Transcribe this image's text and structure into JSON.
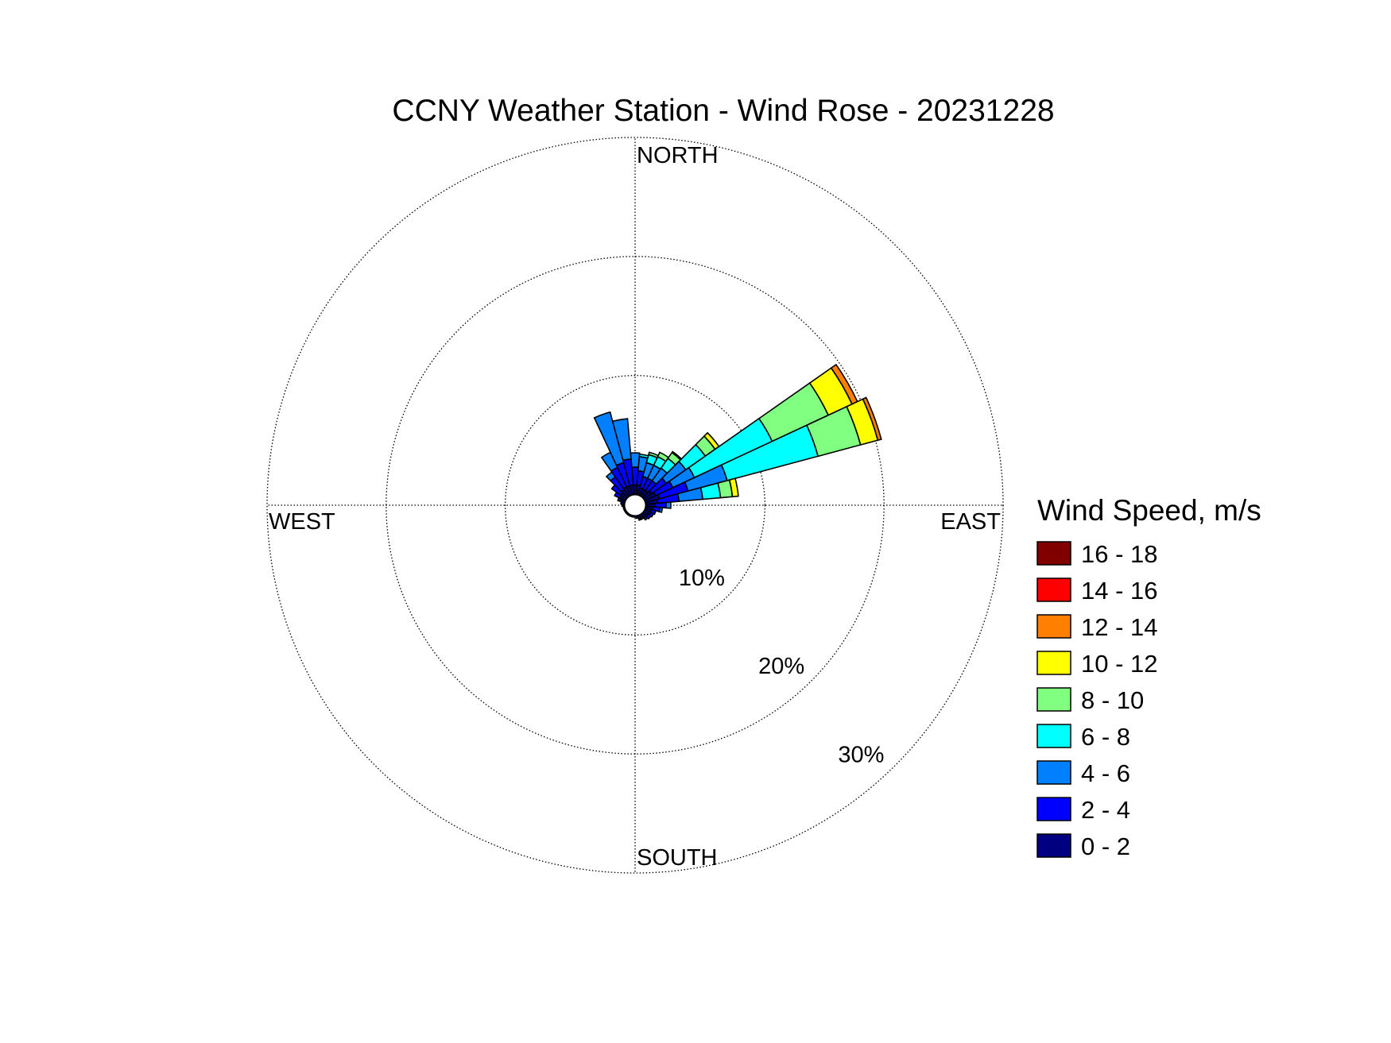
{
  "chart_data": {
    "type": "windrose",
    "title": "CCNY Weather Station - Wind Rose - 20231228",
    "legend_title": "Wind Speed, m/s",
    "x": [
      0,
      10,
      20,
      30,
      40,
      50,
      60,
      70,
      80,
      90,
      100,
      110,
      120,
      130,
      140,
      150,
      160,
      170,
      180,
      190,
      200,
      210,
      220,
      230,
      240,
      250,
      260,
      270,
      280,
      290,
      300,
      310,
      320,
      330,
      340,
      350
    ],
    "rlim": [
      0,
      30
    ],
    "rticks": [
      {
        "value": 10,
        "label": "10%"
      },
      {
        "value": 20,
        "label": "20%"
      },
      {
        "value": 30,
        "label": "30%"
      }
    ],
    "directions": [
      {
        "value": 0,
        "label": "NORTH"
      },
      {
        "value": 90,
        "label": "EAST"
      },
      {
        "value": 180,
        "label": "SOUTH"
      },
      {
        "value": 270,
        "label": "WEST"
      }
    ],
    "grid": true,
    "series": [
      {
        "name": "0 - 2",
        "color": "#000080",
        "values": [
          0.8,
          0.8,
          0.6,
          0.6,
          0.6,
          0.8,
          1.0,
          1.2,
          1.0,
          0.8,
          0.6,
          0.5,
          0.5,
          0.4,
          0.4,
          0.3,
          0.3,
          0.2,
          0.1,
          0.1,
          0.1,
          0.1,
          0.1,
          0.1,
          0.1,
          0.1,
          0.1,
          0.2,
          0.3,
          0.4,
          0.5,
          0.6,
          0.7,
          0.8,
          0.8,
          0.8
        ]
      },
      {
        "name": "2 - 4",
        "color": "#0000ff",
        "values": [
          1.5,
          1.2,
          1.0,
          1.0,
          1.0,
          1.5,
          1.6,
          2.5,
          1.8,
          0.9,
          0.6,
          0.4,
          0.3,
          0.3,
          0.2,
          0.1,
          0.1,
          0,
          0,
          0,
          0,
          0,
          0,
          0,
          0,
          0,
          0,
          0,
          0,
          0.2,
          0.5,
          0.9,
          1.3,
          1.8,
          2.0,
          2.2
        ]
      },
      {
        "name": "4 - 6",
        "color": "#0080ff",
        "values": [
          1.2,
          1.2,
          1.2,
          1.2,
          1.3,
          2.0,
          2.0,
          3.4,
          2.0,
          0.4,
          0.2,
          0,
          0,
          0,
          0,
          0,
          0,
          0,
          0,
          0,
          0,
          0,
          0,
          0,
          0,
          0,
          0,
          0,
          0,
          0,
          0,
          0,
          0.5,
          1.4,
          4.4,
          3.4
        ]
      },
      {
        "name": "6 - 8",
        "color": "#00ffff",
        "values": [
          0,
          0.2,
          0.7,
          0.8,
          1.0,
          2.0,
          7.2,
          7.9,
          1.5,
          0,
          0,
          0,
          0,
          0,
          0,
          0,
          0,
          0,
          0,
          0,
          0,
          0,
          0,
          0,
          0,
          0,
          0,
          0,
          0,
          0,
          0,
          0,
          0,
          0,
          0,
          0
        ]
      },
      {
        "name": "8 - 10",
        "color": "#80ff80",
        "values": [
          0,
          0,
          0.2,
          0.4,
          0.6,
          1.0,
          5.2,
          3.7,
          1.0,
          0,
          0,
          0,
          0,
          0,
          0,
          0,
          0,
          0,
          0,
          0,
          0,
          0,
          0,
          0,
          0,
          0,
          0,
          0,
          0,
          0,
          0,
          0,
          0,
          0,
          0,
          0
        ]
      },
      {
        "name": "10 - 12",
        "color": "#ffff00",
        "values": [
          0,
          0,
          0,
          0,
          0.1,
          0.4,
          2.2,
          1.5,
          0.5,
          0,
          0,
          0,
          0,
          0,
          0,
          0,
          0,
          0,
          0,
          0,
          0,
          0,
          0,
          0,
          0,
          0,
          0,
          0,
          0,
          0,
          0,
          0,
          0,
          0,
          0,
          0
        ]
      },
      {
        "name": "12 - 14",
        "color": "#ff8000",
        "values": [
          0,
          0,
          0,
          0,
          0,
          0,
          0.5,
          0.3,
          0,
          0,
          0,
          0,
          0,
          0,
          0,
          0,
          0,
          0,
          0,
          0,
          0,
          0,
          0,
          0,
          0,
          0,
          0,
          0,
          0,
          0,
          0,
          0,
          0,
          0,
          0,
          0
        ]
      },
      {
        "name": "14 - 16",
        "color": "#ff0000",
        "values": [
          0,
          0,
          0,
          0,
          0,
          0,
          0,
          0,
          0,
          0,
          0,
          0,
          0,
          0,
          0,
          0,
          0,
          0,
          0,
          0,
          0,
          0,
          0,
          0,
          0,
          0,
          0,
          0,
          0,
          0,
          0,
          0,
          0,
          0,
          0,
          0
        ]
      },
      {
        "name": "16 - 18",
        "color": "#800000",
        "values": [
          0,
          0,
          0,
          0,
          0,
          0,
          0,
          0,
          0,
          0,
          0,
          0,
          0,
          0,
          0,
          0,
          0,
          0,
          0,
          0,
          0,
          0,
          0,
          0,
          0,
          0,
          0,
          0,
          0,
          0,
          0,
          0,
          0,
          0,
          0,
          0
        ]
      }
    ]
  }
}
